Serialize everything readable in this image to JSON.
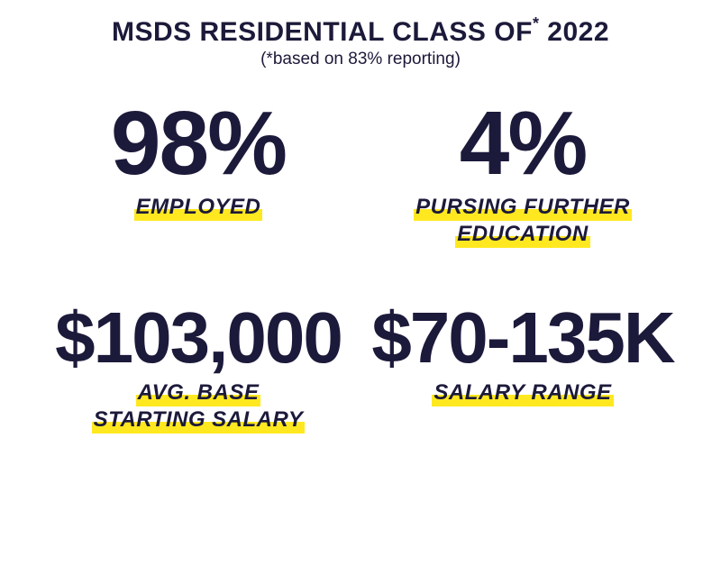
{
  "colors": {
    "text": "#1c1a3a",
    "highlight": "#ffe81f",
    "background": "#ffffff"
  },
  "typography": {
    "title_fontsize": 30,
    "subtitle_fontsize": 19,
    "label_fontsize": 24,
    "large_value_fontsize": 100,
    "small_value_fontsize": 80,
    "font_family": "Arial Narrow"
  },
  "header": {
    "title_prefix": "MSDS RESIDENTIAL CLASS OF",
    "title_year": "2022",
    "asterisk": "*",
    "subtitle": "(*based on 83% reporting)"
  },
  "stats": {
    "employed": {
      "value": "98%",
      "label": "EMPLOYED"
    },
    "further_education": {
      "value": "4%",
      "label_line1": "PURSING FURTHER",
      "label_line2": "EDUCATION"
    },
    "avg_salary": {
      "value": "$103,000",
      "label_line1": "AVG. BASE",
      "label_line2": "STARTING SALARY"
    },
    "salary_range": {
      "value": "$70-135K",
      "label": "SALARY RANGE"
    }
  }
}
